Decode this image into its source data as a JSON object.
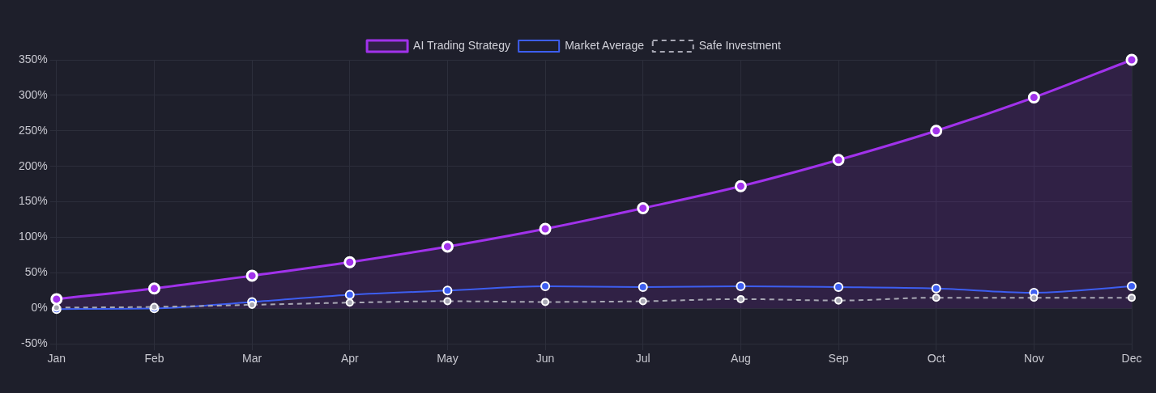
{
  "chart_data": {
    "type": "line",
    "categories": [
      "Jan",
      "Feb",
      "Mar",
      "Apr",
      "May",
      "Jun",
      "Jul",
      "Aug",
      "Sep",
      "Oct",
      "Nov",
      "Dec"
    ],
    "series": [
      {
        "name": "AI Trading Strategy",
        "type": "area",
        "color": "#a132eb",
        "values": [
          13,
          28,
          46,
          65,
          87,
          112,
          141,
          172,
          209,
          250,
          297,
          350
        ]
      },
      {
        "name": "Market Average",
        "type": "line",
        "color": "#3d5ef0",
        "values": [
          -1,
          0,
          9,
          19,
          25,
          31,
          30,
          31,
          30,
          28,
          22,
          31
        ]
      },
      {
        "name": "Safe Investment",
        "type": "line",
        "color": "#a8a8b4",
        "line_style": "dashed",
        "values": [
          1,
          2,
          5,
          8,
          10,
          9,
          10,
          13,
          11,
          15,
          15,
          15
        ]
      }
    ],
    "ylim": [
      -50,
      350
    ],
    "yticks": [
      {
        "value": -50,
        "label": "-50%"
      },
      {
        "value": 0,
        "label": "0%"
      },
      {
        "value": 50,
        "label": "50%"
      },
      {
        "value": 100,
        "label": "100%"
      },
      {
        "value": 150,
        "label": "150%"
      },
      {
        "value": 200,
        "label": "200%"
      },
      {
        "value": 250,
        "label": "250%"
      },
      {
        "value": 300,
        "label": "300%"
      },
      {
        "value": 350,
        "label": "350%"
      }
    ],
    "grid": true,
    "legend": "top",
    "marker": "circle"
  }
}
